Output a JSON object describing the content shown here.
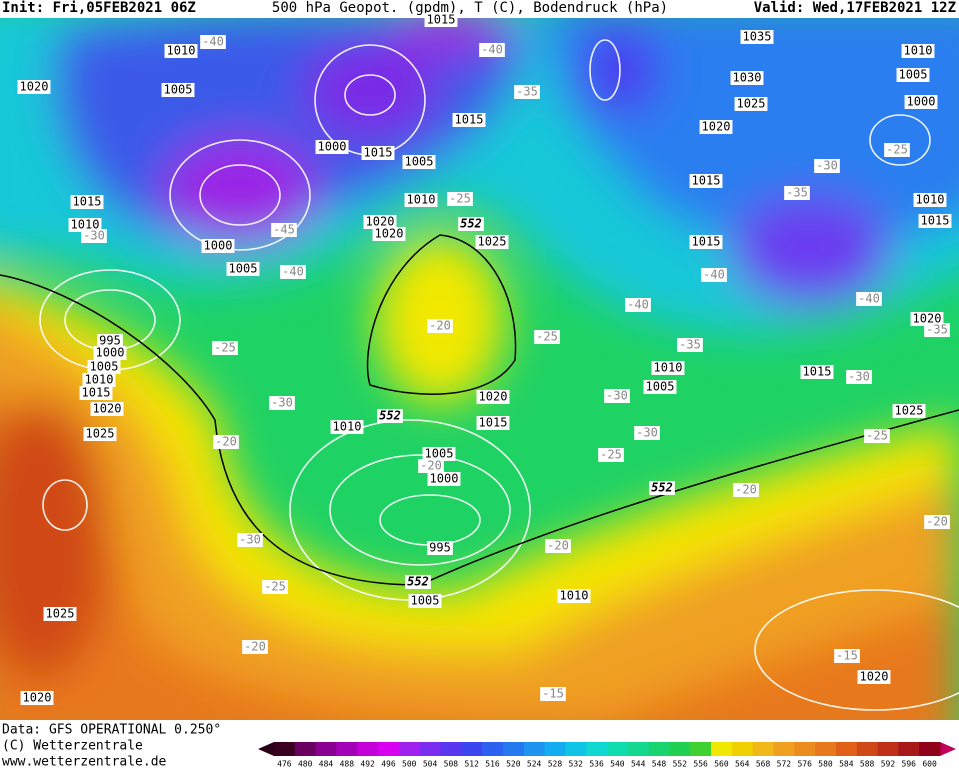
{
  "header": {
    "init": "Init: Fri,05FEB2021 06Z",
    "title": "500 hPa Geopot. (gpdm), T (C), Bodendruck (hPa)",
    "valid": "Valid: Wed,17FEB2021 12Z"
  },
  "pressure_labels": [
    1010,
    1005,
    1020,
    1015,
    1000,
    1015,
    1005,
    1010,
    1015,
    1010,
    1020,
    1020,
    1025,
    1000,
    1005,
    995,
    1000,
    1005,
    1010,
    1015,
    1020,
    1025,
    1015,
    1035,
    1030,
    1025,
    1020,
    1015,
    1015,
    1010,
    1005,
    1000,
    1010,
    1015,
    1020,
    1010,
    1005,
    1015,
    1025,
    1020,
    1015,
    1010,
    1005,
    1000,
    995,
    1005,
    1010,
    1025,
    1020,
    1020
  ],
  "temperature_labels": [
    -40,
    -40,
    -35,
    -45,
    -40,
    -25,
    -30,
    -20,
    -25,
    -25,
    -30,
    -20,
    -20,
    -30,
    -25,
    -20,
    -20,
    -15,
    -15,
    -20,
    -25,
    -30,
    -35,
    -40,
    -30,
    -25,
    -35,
    -40,
    -40,
    -35,
    -30,
    -30,
    -25,
    -20
  ],
  "height_labels": [
    552,
    552,
    552,
    552
  ],
  "footer": {
    "data": "Data: GFS OPERATIONAL 0.250°",
    "copyright": "(C) Wetterzentrale",
    "url": "www.wetterzentrale.de"
  },
  "color_scale": [
    476,
    480,
    484,
    488,
    492,
    496,
    500,
    504,
    508,
    512,
    516,
    520,
    524,
    528,
    532,
    536,
    540,
    544,
    548,
    552,
    556,
    560,
    564,
    568,
    572,
    576,
    580,
    584,
    588,
    592,
    596,
    600
  ]
}
